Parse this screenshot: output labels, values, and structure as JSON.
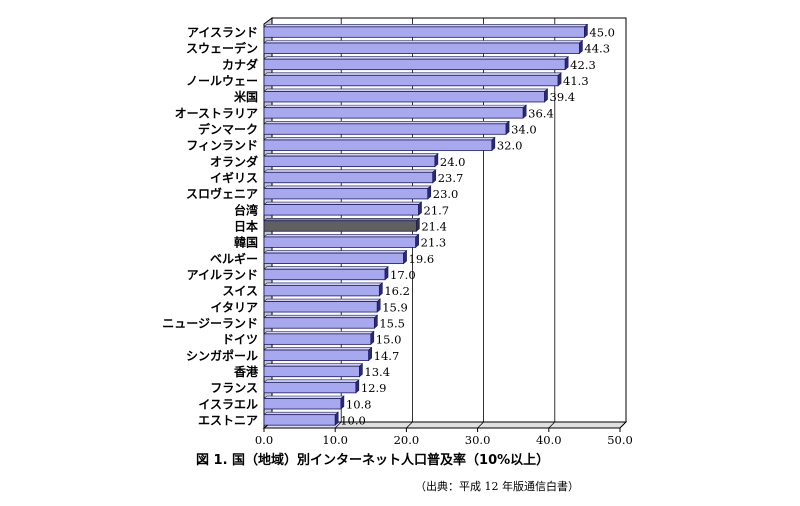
{
  "chart_data": {
    "type": "bar",
    "orientation": "horizontal",
    "categories": [
      "アイスランド",
      "スウェーデン",
      "カナダ",
      "ノールウェー",
      "米国",
      "オーストラリア",
      "デンマーク",
      "フィンランド",
      "オランダ",
      "イギリス",
      "スロヴェニア",
      "台湾",
      "日本",
      "韓国",
      "ベルギー",
      "アイルランド",
      "スイス",
      "イタリア",
      "ニュージーランド",
      "ドイツ",
      "シンガポール",
      "香港",
      "フランス",
      "イスラエル",
      "エストニア"
    ],
    "values": [
      45.0,
      44.3,
      42.3,
      41.3,
      39.4,
      36.4,
      34.0,
      32.0,
      24.0,
      23.7,
      23.0,
      21.7,
      21.4,
      21.3,
      19.6,
      17.0,
      16.2,
      15.9,
      15.5,
      15.0,
      14.7,
      13.4,
      12.9,
      10.8,
      10.0
    ],
    "value_labels": [
      "45.0",
      "44.3",
      "42.3",
      "41.3",
      "39.4",
      "36.4",
      "34.0",
      "32.0",
      "24.0",
      "23.7",
      "23.0",
      "21.7",
      "21.4",
      "21.3",
      "19.6",
      "17.0",
      "16.2",
      "15.9",
      "15.5",
      "15.0",
      "14.7",
      "13.4",
      "12.9",
      "10.8",
      "10.0"
    ],
    "highlight_category": "日本",
    "xlim": [
      0,
      50
    ],
    "x_ticks": [
      "0.0",
      "10.0",
      "20.0",
      "30.0",
      "40.0",
      "50.0"
    ],
    "grid": true,
    "bar_color": "#a8a8ee",
    "bar_edge_color": "#1a1a60",
    "highlight_color": "#606060",
    "title": "図 1. 国（地域）別インターネット人口普及率（10%以上）",
    "source": "（出典：平成 12 年版通信白書）"
  }
}
